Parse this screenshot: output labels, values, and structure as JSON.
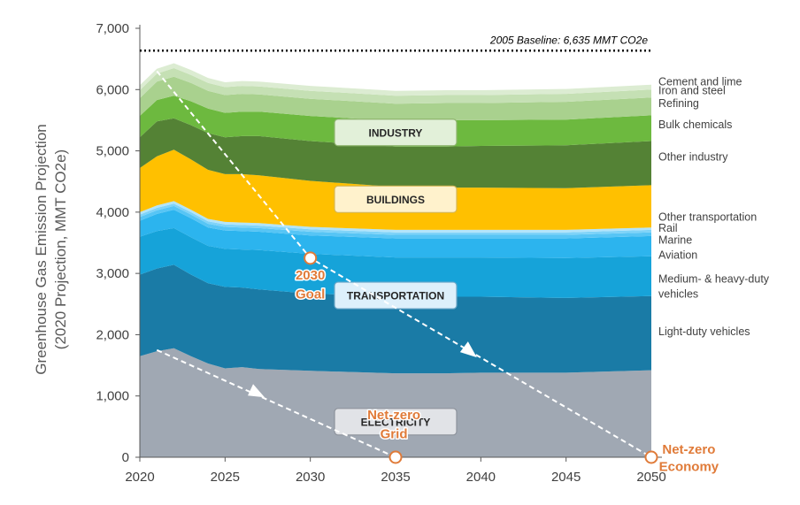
{
  "chart_data": {
    "type": "area",
    "ylabel_line1": "Greenhouse Gas Emission Projection",
    "ylabel_line2": "(2020 Projection, MMT CO2e)",
    "xlabel": "",
    "x_ticks": [
      2020,
      2025,
      2030,
      2035,
      2040,
      2045,
      2050
    ],
    "y_ticks": [
      0,
      1000,
      2000,
      3000,
      4000,
      5000,
      6000,
      7000
    ],
    "y_tick_labels": [
      "0",
      "1,000",
      "2,000",
      "3,000",
      "4,000",
      "5,000",
      "6,000",
      "7,000"
    ],
    "xlim": [
      2020,
      2050
    ],
    "ylim": [
      0,
      7000
    ],
    "x": [
      2020,
      2021,
      2022,
      2023,
      2024,
      2025,
      2026,
      2027,
      2030,
      2035,
      2038,
      2040,
      2045,
      2050
    ],
    "series": [
      {
        "name": "Electricity",
        "color": "#a0a8b3",
        "values": [
          1650,
          1730,
          1780,
          1650,
          1530,
          1450,
          1470,
          1440,
          1410,
          1370,
          1370,
          1380,
          1380,
          1420
        ]
      },
      {
        "name": "Light-duty vehicles",
        "color": "#1a7ba6",
        "values": [
          1330,
          1350,
          1360,
          1330,
          1310,
          1330,
          1300,
          1300,
          1260,
          1260,
          1250,
          1240,
          1220,
          1210
        ]
      },
      {
        "name": "Medium- & heavy-duty vehicles",
        "color": "#16a3d9",
        "values": [
          620,
          610,
          600,
          610,
          610,
          620,
          620,
          640,
          650,
          630,
          640,
          640,
          650,
          650
        ]
      },
      {
        "name": "Aviation",
        "color": "#2cb4ee",
        "values": [
          260,
          280,
          300,
          310,
          300,
          300,
          300,
          300,
          300,
          310,
          310,
          310,
          320,
          330
        ]
      },
      {
        "name": "Marine",
        "color": "#57c5f5",
        "values": [
          60,
          60,
          60,
          60,
          60,
          60,
          60,
          60,
          60,
          60,
          60,
          60,
          60,
          60
        ]
      },
      {
        "name": "Rail",
        "color": "#7fd3f8",
        "values": [
          40,
          40,
          40,
          40,
          40,
          40,
          40,
          40,
          40,
          40,
          40,
          40,
          40,
          40
        ]
      },
      {
        "name": "Other transportation",
        "color": "#b2e4fa",
        "values": [
          40,
          40,
          40,
          40,
          40,
          40,
          40,
          40,
          40,
          40,
          40,
          40,
          40,
          40
        ]
      },
      {
        "name": "Buildings",
        "color": "#ffc000",
        "values": [
          720,
          800,
          840,
          820,
          800,
          780,
          790,
          780,
          750,
          700,
          690,
          690,
          680,
          690
        ]
      },
      {
        "name": "Other industry",
        "color": "#548235",
        "values": [
          500,
          570,
          510,
          560,
          600,
          600,
          620,
          640,
          650,
          660,
          670,
          680,
          700,
          720
        ]
      },
      {
        "name": "Bulk chemicals",
        "color": "#6db93f",
        "values": [
          350,
          350,
          370,
          390,
          400,
          400,
          400,
          400,
          410,
          420,
          430,
          420,
          420,
          420
        ]
      },
      {
        "name": "Refining",
        "color": "#a9d18e",
        "values": [
          290,
          300,
          310,
          300,
          290,
          290,
          290,
          280,
          280,
          280,
          280,
          280,
          290,
          290
        ]
      },
      {
        "name": "Iron and steel",
        "color": "#c5e0b4",
        "values": [
          130,
          130,
          140,
          130,
          130,
          130,
          130,
          130,
          130,
          130,
          130,
          130,
          130,
          130
        ]
      },
      {
        "name": "Cement and lime",
        "color": "#dcecd2",
        "values": [
          80,
          80,
          80,
          80,
          80,
          80,
          80,
          80,
          80,
          80,
          80,
          80,
          80,
          80
        ]
      }
    ],
    "series_labels": [
      {
        "text": "Cement and lime",
        "y": 6130
      },
      {
        "text": "Iron and steel",
        "y": 5980
      },
      {
        "text": "Refining",
        "y": 5770
      },
      {
        "text": "Bulk chemicals",
        "y": 5430
      },
      {
        "text": "Other industry",
        "y": 4900
      },
      {
        "text": "Other transportation",
        "y": 3920
      },
      {
        "text": "Rail",
        "y": 3740
      },
      {
        "text": "Marine",
        "y": 3540
      },
      {
        "text": "Aviation",
        "y": 3300
      },
      {
        "text": "Medium- & heavy-duty",
        "y": 2910
      },
      {
        "text": "vehicles",
        "y": 2660
      },
      {
        "text": "Light-duty vehicles",
        "y": 2050
      }
    ],
    "sector_boxes": [
      {
        "text": "INDUSTRY",
        "x": 2035,
        "y": 5300,
        "fill": "#e2f0d9",
        "stroke": "#8fb56f"
      },
      {
        "text": "BUILDINGS",
        "x": 2035,
        "y": 4210,
        "fill": "#fff2cc",
        "stroke": "#d6b656"
      },
      {
        "text": "TRANSPORTATION",
        "x": 2035,
        "y": 2640,
        "fill": "#ddf0fb",
        "stroke": "#6fa9c9"
      },
      {
        "text": "ELECTRICITY",
        "x": 2035,
        "y": 580,
        "fill": "#e1e3e7",
        "stroke": "#8d939c"
      }
    ],
    "baseline": {
      "label": "2005 Baseline: 6,635 MMT CO2e",
      "value": 6635
    },
    "trajectories": [
      {
        "name": "Net-zero economy path",
        "points": [
          [
            2021,
            6300
          ],
          [
            2030,
            3250
          ],
          [
            2050,
            0
          ]
        ]
      },
      {
        "name": "Net-zero grid path",
        "points": [
          [
            2021,
            1750
          ],
          [
            2035,
            0
          ]
        ]
      }
    ],
    "markers": [
      {
        "name": "2030 Goal",
        "x": 2030,
        "y": 3250
      },
      {
        "name": "Net-zero Grid",
        "x": 2035,
        "y": 0
      },
      {
        "name": "Net-zero Economy",
        "x": 2050,
        "y": 0
      }
    ],
    "annotations": [
      {
        "text": "2030",
        "x": 2030,
        "y": 2970
      },
      {
        "text": "Goal",
        "x": 2030,
        "y": 2660
      },
      {
        "text": "Net-zero",
        "x": 2034.9,
        "y": 690
      },
      {
        "text": "Grid",
        "x": 2034.9,
        "y": 380
      },
      {
        "text": "Net-zero",
        "x": 2052.2,
        "y": 130
      },
      {
        "text": "Economy",
        "x": 2052.2,
        "y": -150
      }
    ],
    "arrows": [
      {
        "x": 2039.3,
        "y": 1730,
        "dir": "down-right-a"
      },
      {
        "x": 2026.8,
        "y": 1050,
        "dir": "down-right-b"
      }
    ],
    "colors": {
      "baseline": "#000000",
      "trajectory": "#ffffff",
      "marker": "#e07b39",
      "text": "#404040"
    }
  }
}
